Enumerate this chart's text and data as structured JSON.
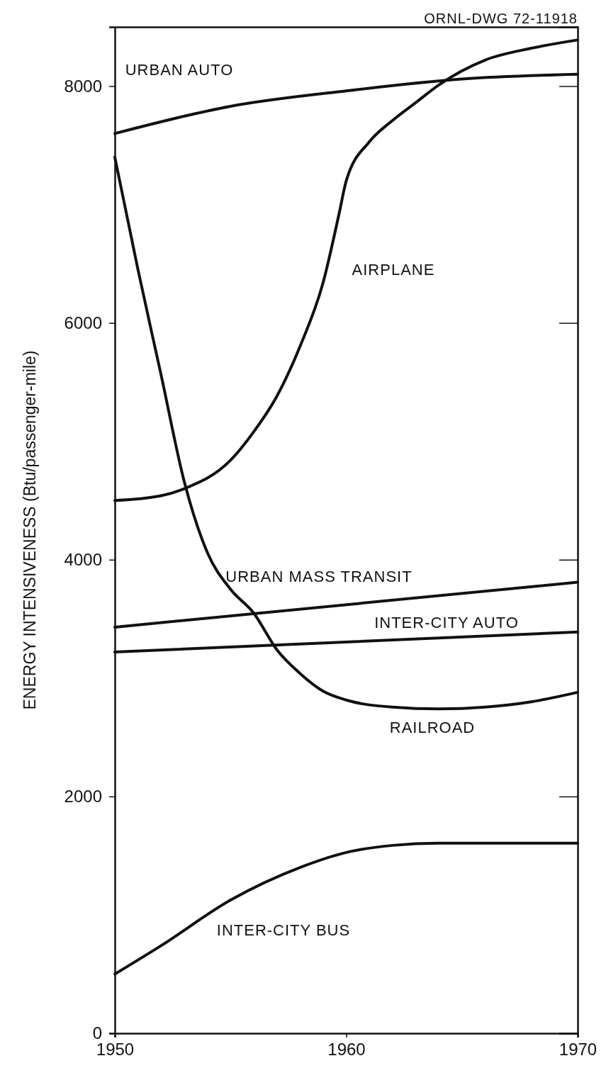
{
  "chart_data": {
    "type": "line",
    "ylabel": "ENERGY INTENSIVENESS (Btu/passenger-mile)",
    "xlim": [
      1950,
      1970
    ],
    "xticks": [
      1950,
      1960,
      1970
    ],
    "ylim": [
      0,
      8500
    ],
    "yticks": [
      0,
      2000,
      4000,
      6000,
      8000
    ],
    "grid": false,
    "marker": "none",
    "line_style": "solid",
    "series": [
      {
        "color": "#111111",
        "x": [
          1950,
          1955,
          1960,
          1965,
          1970
        ],
        "values": [
          7600,
          7830,
          7960,
          8060,
          8100
        ]
      },
      {
        "color": "#111111",
        "x": [
          1950,
          1952,
          1953,
          1955,
          1956,
          1957,
          1958,
          1959,
          1959.7,
          1960,
          1961,
          1962,
          1963,
          1964,
          1966,
          1968,
          1970
        ],
        "values": [
          4500,
          4540,
          4600,
          4840,
          5080,
          5380,
          5800,
          6340,
          6930,
          7200,
          7530,
          7710,
          7860,
          8010,
          8220,
          8320,
          8390
        ]
      },
      {
        "color": "#111111",
        "x": [
          1950,
          1951,
          1952,
          1953,
          1954,
          1955,
          1956,
          1957,
          1958,
          1959,
          1960,
          1962,
          1964,
          1966,
          1968,
          1970
        ],
        "values": [
          7400,
          6450,
          5560,
          4660,
          4060,
          3750,
          3550,
          3240,
          3040,
          2890,
          2815,
          2755,
          2740,
          2755,
          2800,
          2880
        ]
      },
      {
        "color": "#111111",
        "x": [
          1950,
          1970
        ],
        "values": [
          3430,
          3810
        ]
      },
      {
        "color": "#111111",
        "x": [
          1950,
          1970
        ],
        "values": [
          3220,
          3390
        ]
      },
      {
        "color": "#111111",
        "x": [
          1950,
          1952,
          1955,
          1958,
          1960,
          1962,
          1964,
          1970
        ],
        "values": [
          500,
          740,
          1125,
          1400,
          1527,
          1587,
          1605,
          1605
        ]
      }
    ],
    "annotations": [
      "ORNL-DWG 72-11918",
      "URBAN AUTO",
      "AIRPLANE",
      "URBAN MASS TRANSIT",
      "INTER-CITY AUTO",
      "RAILROAD",
      "INTER-CITY BUS"
    ]
  }
}
